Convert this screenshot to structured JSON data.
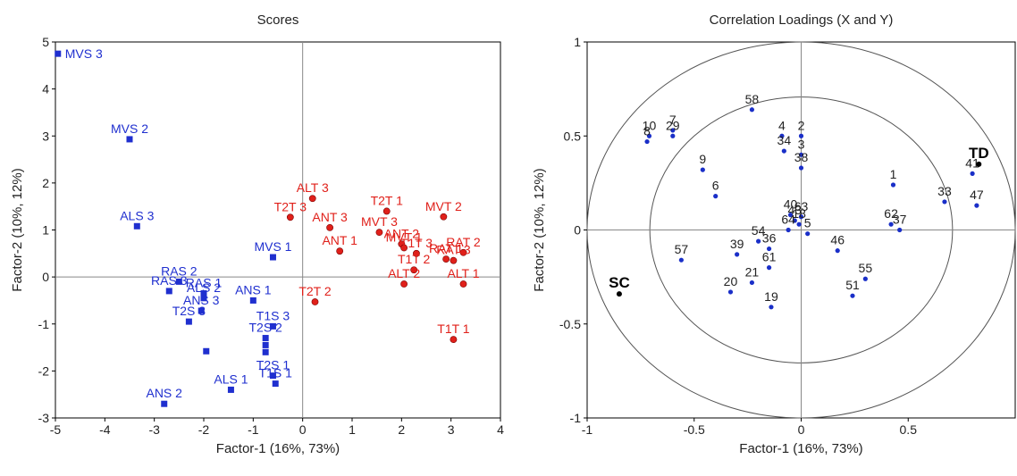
{
  "chart_data": [
    {
      "type": "scatter",
      "title": "Scores",
      "xlabel": "Factor-1 (16%, 73%)",
      "ylabel": "Factor-2 (10%, 12%)",
      "xlim": [
        -5,
        4
      ],
      "ylim": [
        -3,
        5
      ],
      "xticks": [
        -5,
        -4,
        -3,
        -2,
        -1,
        0,
        1,
        2,
        3,
        4
      ],
      "yticks": [
        -3,
        -2,
        -1,
        0,
        1,
        2,
        3,
        4,
        5
      ],
      "colors": {
        "blue": "#1f2fcf",
        "red": "#e0201a"
      },
      "series": [
        {
          "marker": "square",
          "color": "#1f2fcf",
          "points": [
            {
              "label": "MVS 3",
              "x": -4.95,
              "y": 4.75
            },
            {
              "label": "MVS 2",
              "x": -3.5,
              "y": 2.93
            },
            {
              "label": "ALS 3",
              "x": -3.35,
              "y": 1.08
            },
            {
              "label": "MVS 1",
              "x": -0.6,
              "y": 0.42
            },
            {
              "label": "RAS 2",
              "x": -2.5,
              "y": -0.1
            },
            {
              "label": "RAS 1",
              "x": -2.0,
              "y": -0.35
            },
            {
              "label": "RAS 3",
              "x": -2.7,
              "y": -0.3
            },
            {
              "label": "ALS 2",
              "x": -2.0,
              "y": -0.45
            },
            {
              "label": "ANS 1",
              "x": -1.0,
              "y": -0.5
            },
            {
              "label": "ANS 3",
              "x": -2.05,
              "y": -0.72
            },
            {
              "label": "T1S 3",
              "x": -0.6,
              "y": -1.05
            },
            {
              "label": "T2S 3",
              "x": -2.3,
              "y": -0.95
            },
            {
              "label": "T2S 2",
              "x": -0.75,
              "y": -1.3
            },
            {
              "label": "",
              "x": -0.75,
              "y": -1.45
            },
            {
              "label": "",
              "x": -1.95,
              "y": -1.58
            },
            {
              "label": "",
              "x": -0.75,
              "y": -1.6
            },
            {
              "label": "T2S 1",
              "x": -0.6,
              "y": -2.1
            },
            {
              "label": "T1S 1",
              "x": -0.55,
              "y": -2.27
            },
            {
              "label": "ALS 1",
              "x": -1.45,
              "y": -2.4
            },
            {
              "label": "ANS 2",
              "x": -2.8,
              "y": -2.7
            }
          ]
        },
        {
          "marker": "circle",
          "color": "#e0201a",
          "points": [
            {
              "label": "ALT 3",
              "x": 0.2,
              "y": 1.67
            },
            {
              "label": "T2T 3",
              "x": -0.25,
              "y": 1.27
            },
            {
              "label": "ANT 3",
              "x": 0.55,
              "y": 1.05
            },
            {
              "label": "ANT 1",
              "x": 0.75,
              "y": 0.55
            },
            {
              "label": "T2T 1",
              "x": 1.7,
              "y": 1.4
            },
            {
              "label": "MVT 2",
              "x": 2.85,
              "y": 1.28
            },
            {
              "label": "MVT 3",
              "x": 1.55,
              "y": 0.95
            },
            {
              "label": "ANT 2",
              "x": 2.0,
              "y": 0.7
            },
            {
              "label": "MVT 1",
              "x": 2.05,
              "y": 0.62
            },
            {
              "label": "T1T 3",
              "x": 2.3,
              "y": 0.5
            },
            {
              "label": "RAT 2",
              "x": 3.25,
              "y": 0.52
            },
            {
              "label": "RAT 1",
              "x": 2.9,
              "y": 0.38
            },
            {
              "label": "RAT 3",
              "x": 3.05,
              "y": 0.35
            },
            {
              "label": "T1T 2",
              "x": 2.25,
              "y": 0.15
            },
            {
              "label": "ALT 2",
              "x": 2.05,
              "y": -0.15
            },
            {
              "label": "ALT 1",
              "x": 3.25,
              "y": -0.15
            },
            {
              "label": "T2T 2",
              "x": 0.25,
              "y": -0.53
            },
            {
              "label": "T1T 1",
              "x": 3.05,
              "y": -1.33
            }
          ]
        }
      ]
    },
    {
      "type": "scatter",
      "title": "Correlation Loadings (X and Y)",
      "xlabel": "Factor-1 (16%, 73%)",
      "ylabel": "Factor-2 (10%, 12%)",
      "xlim": [
        -1,
        1
      ],
      "ylim": [
        -1,
        1
      ],
      "xticks": [
        -1,
        -0.5,
        0,
        0.5
      ],
      "yticks": [
        -1,
        -0.5,
        0,
        0.5,
        1
      ],
      "circles": [
        1.0,
        0.7071
      ],
      "colors": {
        "point": "#1a2fc8",
        "highlight": "#000000",
        "circle": "#555555"
      },
      "points": [
        {
          "label": "58",
          "x": -0.23,
          "y": 0.64
        },
        {
          "label": "10",
          "x": -0.71,
          "y": 0.5
        },
        {
          "label": "7",
          "x": -0.6,
          "y": 0.53
        },
        {
          "label": "29",
          "x": -0.6,
          "y": 0.5
        },
        {
          "label": "8",
          "x": -0.72,
          "y": 0.47
        },
        {
          "label": "4",
          "x": -0.09,
          "y": 0.5
        },
        {
          "label": "2",
          "x": 0.0,
          "y": 0.5
        },
        {
          "label": "34",
          "x": -0.08,
          "y": 0.42
        },
        {
          "label": "3",
          "x": 0.0,
          "y": 0.4
        },
        {
          "label": "38",
          "x": 0.0,
          "y": 0.33
        },
        {
          "label": "9",
          "x": -0.46,
          "y": 0.32
        },
        {
          "label": "6",
          "x": -0.4,
          "y": 0.18
        },
        {
          "label": "1",
          "x": 0.43,
          "y": 0.24
        },
        {
          "label": "41",
          "x": 0.8,
          "y": 0.3
        },
        {
          "label": "47",
          "x": 0.82,
          "y": 0.13
        },
        {
          "label": "33",
          "x": 0.67,
          "y": 0.15
        },
        {
          "label": "62",
          "x": 0.42,
          "y": 0.03
        },
        {
          "label": "37",
          "x": 0.46,
          "y": 0.0
        },
        {
          "label": "40",
          "x": -0.05,
          "y": 0.08
        },
        {
          "label": "63",
          "x": 0.0,
          "y": 0.07
        },
        {
          "label": "43",
          "x": -0.03,
          "y": 0.05
        },
        {
          "label": "18",
          "x": -0.01,
          "y": 0.03
        },
        {
          "label": "64",
          "x": -0.06,
          "y": 0.0
        },
        {
          "label": "5",
          "x": 0.03,
          "y": -0.02
        },
        {
          "label": "46",
          "x": 0.17,
          "y": -0.11
        },
        {
          "label": "39",
          "x": -0.3,
          "y": -0.13
        },
        {
          "label": "54",
          "x": -0.2,
          "y": -0.06
        },
        {
          "label": "36",
          "x": -0.15,
          "y": -0.1
        },
        {
          "label": "57",
          "x": -0.56,
          "y": -0.16
        },
        {
          "label": "55",
          "x": 0.3,
          "y": -0.26
        },
        {
          "label": "51",
          "x": 0.24,
          "y": -0.35
        },
        {
          "label": "21",
          "x": -0.23,
          "y": -0.28
        },
        {
          "label": "61",
          "x": -0.15,
          "y": -0.2
        },
        {
          "label": "20",
          "x": -0.33,
          "y": -0.33
        },
        {
          "label": "19",
          "x": -0.14,
          "y": -0.41
        },
        {
          "label": "TD",
          "x": 0.83,
          "y": 0.35,
          "highlight": true
        },
        {
          "label": "SC",
          "x": -0.85,
          "y": -0.34,
          "highlight": true
        }
      ]
    }
  ]
}
